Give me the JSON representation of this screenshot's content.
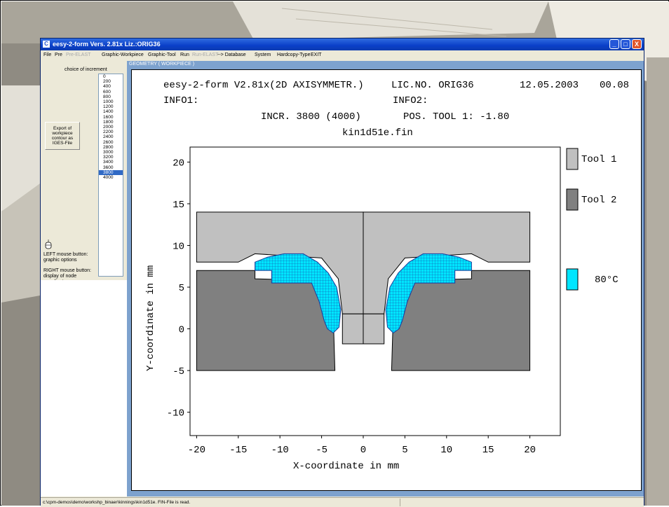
{
  "window": {
    "title": "eesy-2-form Vers. 2.81x  Liz.:ORIG36",
    "app_icon": "C"
  },
  "menu": [
    {
      "label": "File",
      "enabled": true
    },
    {
      "label": "Pre",
      "enabled": true
    },
    {
      "label": "Pre-ELAST",
      "enabled": false
    },
    {
      "label": "Graphic-Workpiece",
      "enabled": true
    },
    {
      "label": "Graphic-Tool",
      "enabled": true
    },
    {
      "label": "Run",
      "enabled": true
    },
    {
      "label": "Run-ELAST",
      "enabled": false
    },
    {
      "label": "--> Database",
      "enabled": true
    },
    {
      "label": "System",
      "enabled": true
    },
    {
      "label": "Hardcopy-Type",
      "enabled": true
    },
    {
      "label": "EXIT",
      "enabled": true
    }
  ],
  "left_panel": {
    "increment_label": "choice of increment",
    "increments": [
      "0",
      "200",
      "400",
      "600",
      "800",
      "1000",
      "1200",
      "1400",
      "1600",
      "1800",
      "2000",
      "2200",
      "2400",
      "2600",
      "2800",
      "3000",
      "3200",
      "3400",
      "3600",
      "3800",
      "4000"
    ],
    "selected_increment": "3800",
    "export_button": "Export of workpiece contour as IGES-File",
    "left_mouse_help": "LEFT mouse button: graphic options",
    "right_mouse_help": "RIGHT mouse button: display of node coordinates"
  },
  "geometry_panel": {
    "title": "GEOMETRY   ( WORKPIECE )",
    "header_line1_left": "eesy-2-form V2.81x(2D AXISYMMETR.)",
    "header_line1_lic": "LIC.NO. ORIG36",
    "header_line1_date": "12.05.2003",
    "header_line1_time": "00.08",
    "info1": "INFO1:",
    "info2": "INFO2:",
    "incr_text": "INCR. 3800 (4000)",
    "pos_tool_text": "POS. TOOL   1:   -1.80",
    "filename": "kin1d51e.fin"
  },
  "chart_data": {
    "type": "diagram",
    "xlabel": "X-coordinate in mm",
    "ylabel": "Y-coordinate in mm",
    "xlim": [
      -20,
      20
    ],
    "ylim": [
      -12.8,
      21.8
    ],
    "xticks": [
      -20,
      -15,
      -10,
      -5,
      0,
      5,
      10,
      15,
      20
    ],
    "yticks": [
      20,
      15,
      10,
      5,
      0,
      -5,
      -10
    ],
    "legend": [
      {
        "label": "Tool 1",
        "color": "#c0c0c0"
      },
      {
        "label": "Tool 2",
        "color": "#808080"
      },
      {
        "label": "80°C",
        "color": "#00e5ff"
      }
    ],
    "tool1_upper_left": [
      [
        -20,
        14
      ],
      [
        0,
        14
      ],
      [
        0,
        1.8
      ],
      [
        -2.5,
        1.8
      ],
      [
        -3,
        6
      ],
      [
        -5,
        8.5
      ],
      [
        -13,
        9
      ],
      [
        -15,
        8
      ],
      [
        -20,
        8
      ]
    ],
    "tool1_upper_right": [
      [
        0,
        14
      ],
      [
        20,
        14
      ],
      [
        20,
        8
      ],
      [
        15,
        8
      ],
      [
        13,
        9
      ],
      [
        5,
        8.5
      ],
      [
        3,
        6
      ],
      [
        2.5,
        1.8
      ],
      [
        0,
        1.8
      ]
    ],
    "tool1_punch": [
      [
        -2.5,
        1.8
      ],
      [
        2.5,
        1.8
      ],
      [
        2.5,
        -1.8
      ],
      [
        -2.5,
        -1.8
      ]
    ],
    "tool2_left": [
      [
        -20,
        7
      ],
      [
        -13,
        7
      ],
      [
        -13,
        6
      ],
      [
        -5.5,
        5.8
      ],
      [
        -4,
        3.5
      ],
      [
        -3.6,
        1.8
      ],
      [
        -3.4,
        -5
      ],
      [
        -20,
        -5
      ]
    ],
    "tool2_right": [
      [
        20,
        7
      ],
      [
        13,
        7
      ],
      [
        13,
        6
      ],
      [
        5.5,
        5.8
      ],
      [
        4,
        3.5
      ],
      [
        3.6,
        1.8
      ],
      [
        3.4,
        -5
      ],
      [
        20,
        -5
      ]
    ],
    "workpiece_left": [
      [
        -13,
        8
      ],
      [
        -13,
        7
      ],
      [
        -11,
        7
      ],
      [
        -11,
        5.5
      ],
      [
        -6.2,
        5.5
      ],
      [
        -5.3,
        3.3
      ],
      [
        -4.7,
        1
      ],
      [
        -4.3,
        0
      ],
      [
        -3.6,
        -0.5
      ],
      [
        -2.9,
        0.2
      ],
      [
        -2.7,
        2.3
      ],
      [
        -3.2,
        5
      ],
      [
        -4.2,
        6.7
      ],
      [
        -5.5,
        8
      ],
      [
        -7.2,
        9
      ],
      [
        -9.5,
        9
      ],
      [
        -11.5,
        8.6
      ]
    ],
    "workpiece_right": [
      [
        13,
        8
      ],
      [
        13,
        7
      ],
      [
        11,
        7
      ],
      [
        11,
        5.5
      ],
      [
        6.2,
        5.5
      ],
      [
        5.3,
        3.3
      ],
      [
        4.7,
        1
      ],
      [
        4.3,
        0
      ],
      [
        3.6,
        -0.5
      ],
      [
        2.9,
        0.2
      ],
      [
        2.7,
        2.3
      ],
      [
        3.2,
        5
      ],
      [
        4.2,
        6.7
      ],
      [
        5.5,
        8
      ],
      [
        7.2,
        9
      ],
      [
        9.5,
        9
      ],
      [
        11.5,
        8.6
      ]
    ]
  },
  "status_bar": {
    "text": "c:\\cpm-demos\\demo\\workshp_binaer\\kinnings\\kin1d51e. FIN-File is read."
  },
  "window_buttons": {
    "minimize": "_",
    "maximize": "□",
    "close": "X"
  },
  "colors": {
    "tool1": "#c0c0c0",
    "tool2": "#808080",
    "workpiece": "#00e5ff",
    "mesh": "#1a3a9a",
    "titlebar": "#0a3fc8",
    "geometry_frame": "#7da2ce"
  }
}
